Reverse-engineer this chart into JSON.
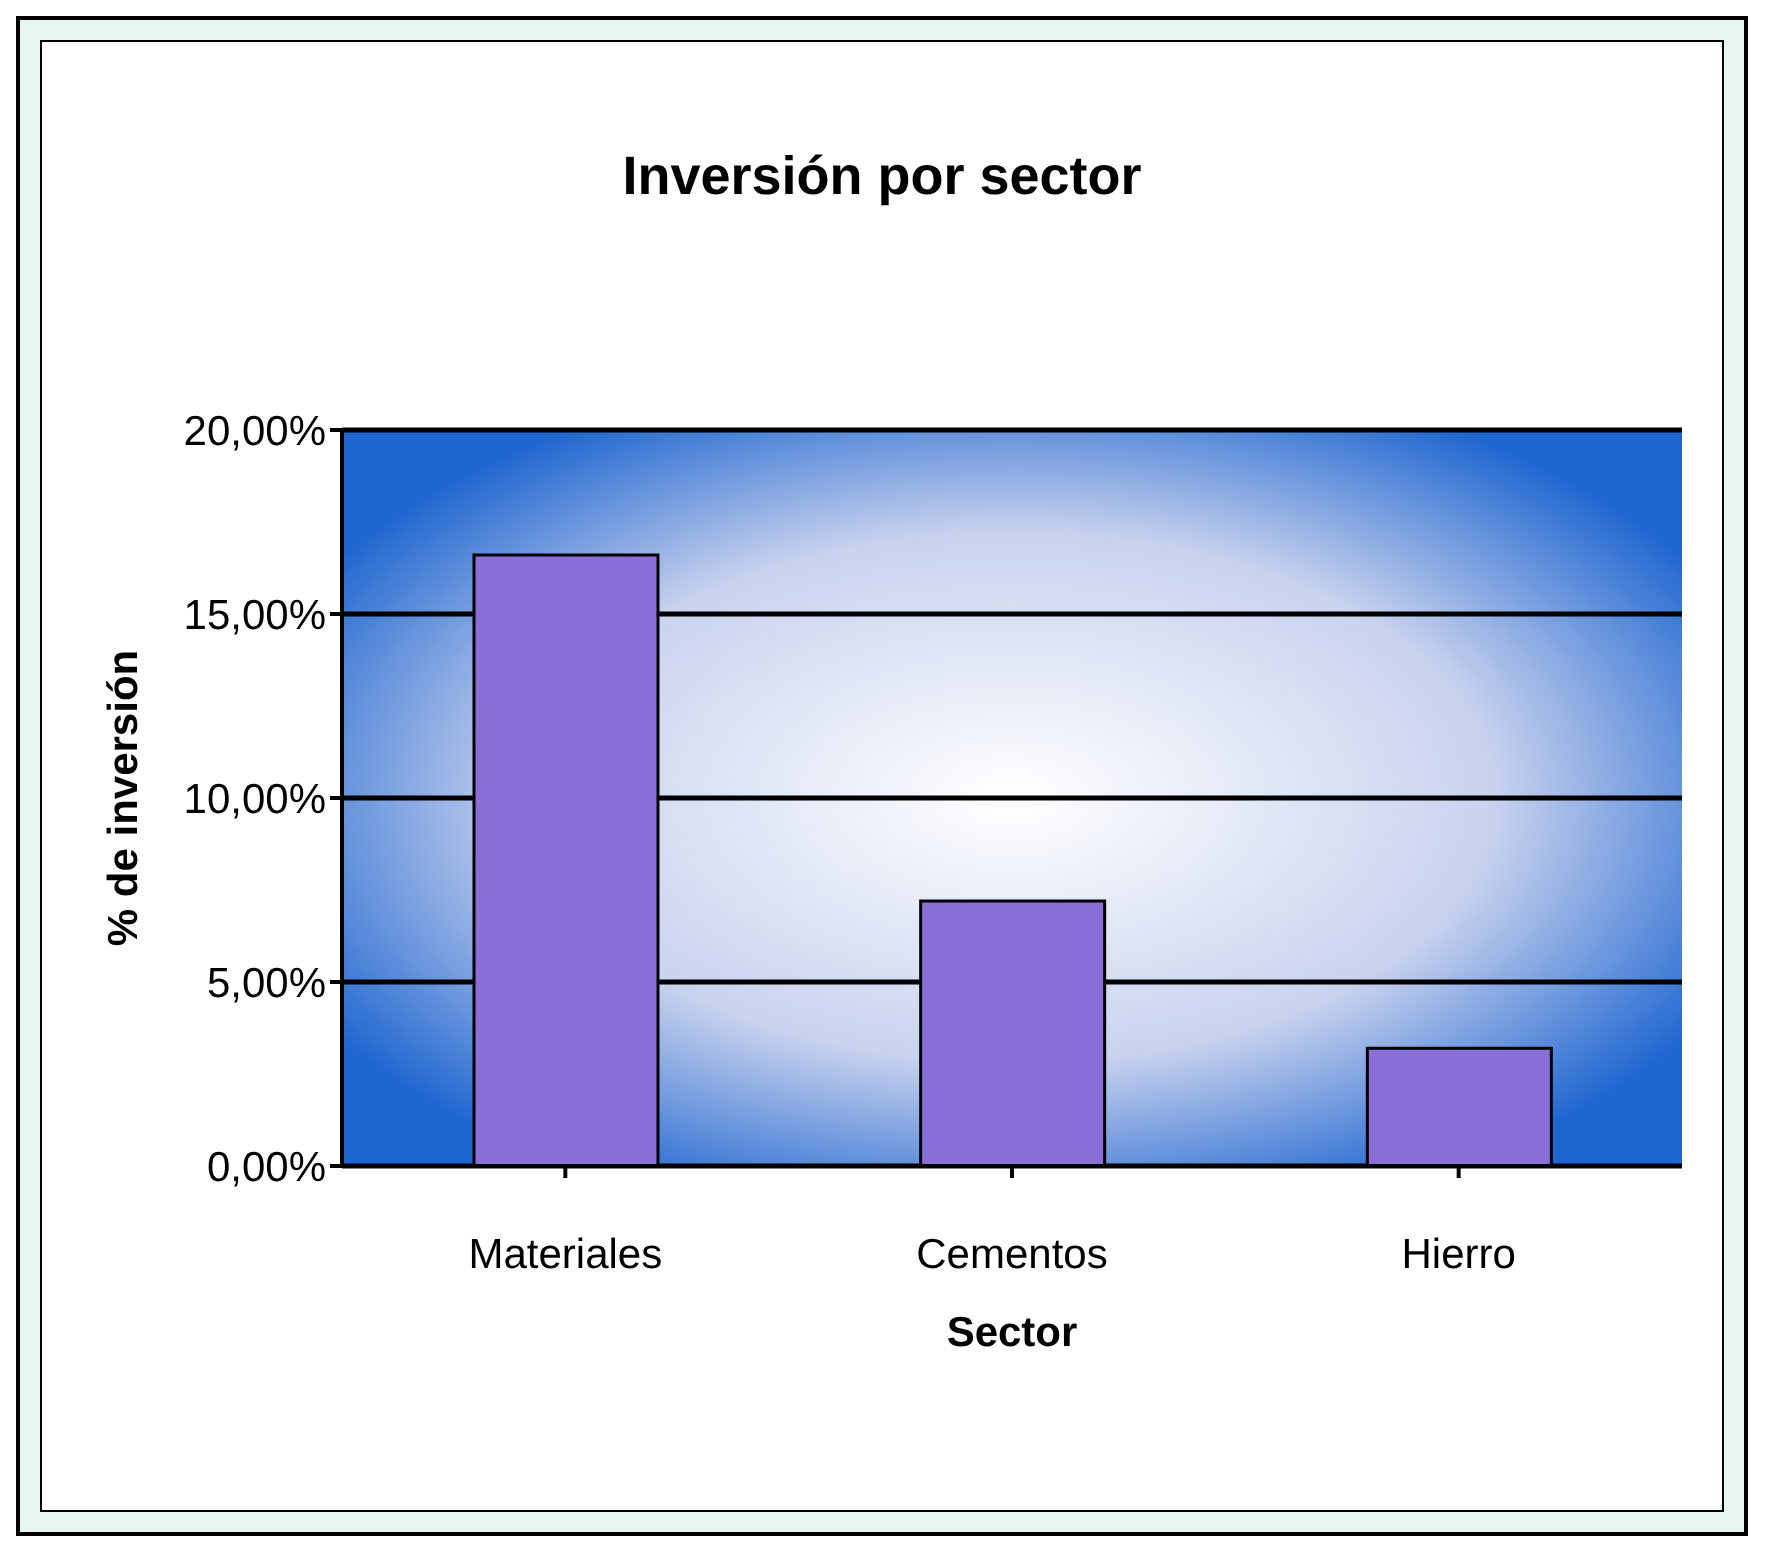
{
  "chart_data": {
    "type": "bar",
    "title": "Inversión por sector",
    "xlabel": "Sector",
    "ylabel": "% de inversión",
    "categories": [
      "Materiales",
      "Cementos",
      "Hierro"
    ],
    "values": [
      16.6,
      7.2,
      3.2
    ],
    "color": "#8a6fd8",
    "ylim": [
      0,
      20
    ],
    "yticks": [
      {
        "value": 0,
        "label": "0,00%"
      },
      {
        "value": 5,
        "label": "5,00%"
      },
      {
        "value": 10,
        "label": "10,00%"
      },
      {
        "value": 15,
        "label": "15,00%"
      },
      {
        "value": 20,
        "label": "20,00%"
      }
    ],
    "grid": "y"
  }
}
